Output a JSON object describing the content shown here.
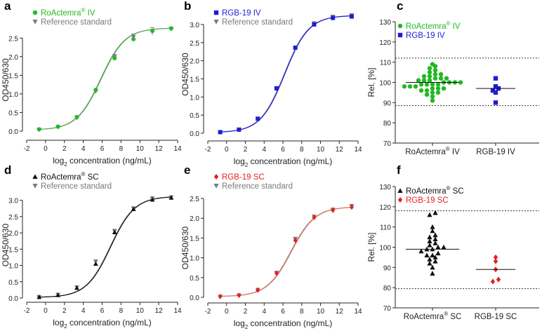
{
  "colors": {
    "green": "#22b922",
    "blue": "#1d1dd6",
    "grey": "#7a7a7a",
    "black": "#111111",
    "red": "#e52020",
    "fit_red": "#e0796a",
    "fit_green": "#52b852",
    "axis": "#222222"
  },
  "chart_data": [
    {
      "panel": "a",
      "type": "line",
      "xlabel_pre": "log",
      "xlabel_sub": "2",
      "xlabel_post": " concentration (ng/mL)",
      "ylabel": "OD450/630",
      "xlim": [
        -2,
        14
      ],
      "ylim": [
        0,
        2.75
      ],
      "xticks": [
        -2,
        0,
        2,
        4,
        6,
        8,
        10,
        12,
        14
      ],
      "yticks": [
        0.0,
        0.5,
        1.0,
        1.5,
        2.0,
        2.5
      ],
      "legend_position": "top-left",
      "fit": {
        "bottom": 0.03,
        "top": 2.77,
        "ec50": 5.9,
        "slope": 0.78
      },
      "series": [
        {
          "name": "RoActemra",
          "sup": "®",
          "suffix": " IV",
          "marker": "circle",
          "color_key": "green",
          "x": [
            -0.68,
            1.32,
            3.32,
            5.32,
            7.32,
            9.32,
            11.32,
            13.32
          ],
          "y": [
            0.05,
            0.12,
            0.38,
            1.11,
            1.96,
            2.47,
            2.69,
            2.76
          ]
        },
        {
          "name": "Reference standard",
          "sup": "",
          "suffix": "",
          "marker": "triangle-down",
          "color_key": "grey",
          "x": [
            -0.68,
            1.32,
            3.32,
            5.32,
            7.32,
            9.32,
            11.32,
            13.32
          ],
          "y": [
            0.04,
            0.11,
            0.36,
            1.07,
            1.99,
            2.53,
            2.68,
            2.75
          ],
          "err": [
            0.02,
            0.02,
            0.03,
            0.04,
            0.07,
            0.08,
            0.1,
            0.04
          ]
        }
      ]
    },
    {
      "panel": "b",
      "type": "line",
      "xlabel_pre": "log",
      "xlabel_sub": "2",
      "xlabel_post": " concentration (ng/mL)",
      "ylabel": "OD450/630",
      "xlim": [
        -2,
        14
      ],
      "ylim": [
        0,
        3.25
      ],
      "xticks": [
        -2,
        0,
        2,
        4,
        6,
        8,
        10,
        12,
        14
      ],
      "yticks": [
        0.0,
        0.5,
        1.0,
        1.5,
        2.0,
        2.5,
        3.0
      ],
      "legend_position": "top-left",
      "fit": {
        "bottom": 0.02,
        "top": 3.25,
        "ec50": 6.2,
        "slope": 0.78
      },
      "series": [
        {
          "name": "RGB-19 IV",
          "sup": "",
          "suffix": "",
          "marker": "square",
          "color_key": "blue",
          "x": [
            -0.68,
            1.32,
            3.32,
            5.32,
            7.32,
            9.32,
            11.32,
            13.32
          ],
          "y": [
            0.03,
            0.1,
            0.4,
            1.24,
            2.36,
            3.0,
            3.18,
            3.22
          ]
        },
        {
          "name": "Reference standard",
          "sup": "",
          "suffix": "",
          "marker": "triangle-down",
          "color_key": "grey",
          "x": [
            -0.68,
            1.32,
            3.32,
            5.32,
            7.32,
            9.32,
            11.32,
            13.32
          ],
          "y": [
            0.03,
            0.1,
            0.4,
            1.22,
            2.34,
            3.02,
            3.2,
            3.24
          ],
          "err": [
            0.01,
            0.02,
            0.03,
            0.04,
            0.05,
            0.06,
            0.06,
            0.06
          ]
        }
      ]
    },
    {
      "panel": "c",
      "type": "scatter",
      "ylabel": "Rel. [%]",
      "ylim": [
        70,
        130
      ],
      "yticks": [
        70,
        80,
        90,
        100,
        110,
        120,
        130
      ],
      "reference_lines": [
        88.5,
        112
      ],
      "legend_position": "top-left",
      "groups": [
        {
          "label_main": "RoActemra",
          "label_sup": "®",
          "label_suffix": " IV",
          "marker": "circle",
          "color_key": "green",
          "median": 100,
          "values": [
            91,
            93,
            94,
            95,
            95,
            96,
            96,
            97,
            97,
            97,
            98,
            98,
            98,
            99,
            99,
            99,
            99,
            100,
            100,
            100,
            100,
            101,
            101,
            101,
            102,
            102,
            102,
            103,
            103,
            104,
            104,
            105,
            106,
            107,
            108,
            109
          ]
        },
        {
          "label_main": "RGB-19 IV",
          "label_sup": "",
          "label_suffix": "",
          "marker": "square",
          "color_key": "blue",
          "median": 97,
          "values": [
            90,
            95,
            96,
            97,
            98,
            102
          ]
        }
      ]
    },
    {
      "panel": "d",
      "type": "line",
      "xlabel_pre": "log",
      "xlabel_sub": "2",
      "xlabel_post": " concentration (ng/mL)",
      "ylabel": "OD450/630",
      "xlim": [
        -2,
        14
      ],
      "ylim": [
        0,
        3.25
      ],
      "xticks": [
        -2,
        0,
        2,
        4,
        6,
        8,
        10,
        12,
        14
      ],
      "yticks": [
        0.0,
        0.5,
        1.0,
        1.5,
        2.0,
        2.5,
        3.0
      ],
      "legend_position": "top-left",
      "fit": {
        "bottom": 0.02,
        "top": 3.12,
        "ec50": 6.9,
        "slope": 0.78
      },
      "series": [
        {
          "name": "RoActemra",
          "sup": "®",
          "suffix": " SC",
          "marker": "triangle-up",
          "color_key": "black",
          "x": [
            -0.68,
            1.32,
            3.32,
            5.32,
            7.32,
            9.32,
            11.32,
            13.32
          ],
          "y": [
            0.03,
            0.09,
            0.31,
            1.05,
            2.02,
            2.73,
            3.02,
            3.08
          ]
        },
        {
          "name": "Reference standard",
          "sup": "",
          "suffix": "",
          "marker": "triangle-down",
          "color_key": "grey",
          "x": [
            -0.68,
            1.32,
            3.32,
            5.32,
            7.32,
            9.32,
            11.32,
            13.32
          ],
          "y": [
            0.03,
            0.1,
            0.33,
            1.12,
            2.05,
            2.75,
            3.05,
            3.09
          ],
          "err": [
            0.02,
            0.03,
            0.04,
            0.05,
            0.06,
            0.05,
            0.06,
            0.05
          ]
        }
      ]
    },
    {
      "panel": "e",
      "type": "line",
      "xlabel_pre": "log",
      "xlabel_sub": "2",
      "xlabel_post": " concentration (ng/mL)",
      "ylabel": "OD450/630",
      "xlim": [
        -2,
        14
      ],
      "ylim": [
        0,
        2.5
      ],
      "xticks": [
        -2,
        0,
        2,
        4,
        6,
        8,
        10,
        12,
        14
      ],
      "yticks": [
        0.0,
        0.5,
        1.0,
        1.5,
        2.0,
        2.5
      ],
      "legend_position": "top-left",
      "fit": {
        "bottom": 0.02,
        "top": 2.29,
        "ec50": 6.9,
        "slope": 0.78
      },
      "series": [
        {
          "name": "RGB-19 SC",
          "sup": "",
          "suffix": "",
          "marker": "diamond",
          "color_key": "red",
          "x": [
            -0.68,
            1.32,
            3.32,
            5.32,
            7.32,
            9.32,
            11.32,
            13.32
          ],
          "y": [
            0.02,
            0.05,
            0.18,
            0.61,
            1.44,
            2.02,
            2.2,
            2.28
          ]
        },
        {
          "name": "Reference standard",
          "sup": "",
          "suffix": "",
          "marker": "triangle-down",
          "color_key": "grey",
          "x": [
            -0.68,
            1.32,
            3.32,
            5.32,
            7.32,
            9.32,
            11.32,
            13.32
          ],
          "y": [
            0.02,
            0.05,
            0.19,
            0.62,
            1.47,
            2.04,
            2.21,
            2.3
          ],
          "err": [
            0.01,
            0.01,
            0.02,
            0.03,
            0.05,
            0.04,
            0.05,
            0.05
          ]
        }
      ]
    },
    {
      "panel": "f",
      "type": "scatter",
      "ylabel": "Rel. [%]",
      "ylim": [
        70,
        130
      ],
      "yticks": [
        70,
        80,
        90,
        100,
        110,
        120,
        130
      ],
      "reference_lines": [
        79.5,
        118
      ],
      "legend_position": "top-left",
      "groups": [
        {
          "label_main": "RoActemra",
          "label_sup": "®",
          "label_suffix": " SC",
          "marker": "triangle-up",
          "color_key": "black",
          "median": 99,
          "values": [
            87,
            90,
            92,
            93,
            94,
            95,
            96,
            96,
            97,
            98,
            99,
            99,
            100,
            100,
            101,
            102,
            103,
            104,
            105,
            106,
            108,
            110,
            116,
            117
          ]
        },
        {
          "label_main": "RGB-19 SC",
          "label_sup": "",
          "label_suffix": "",
          "marker": "diamond",
          "color_key": "red",
          "median": 89,
          "values": [
            83,
            84,
            89,
            93,
            95
          ]
        }
      ]
    }
  ]
}
